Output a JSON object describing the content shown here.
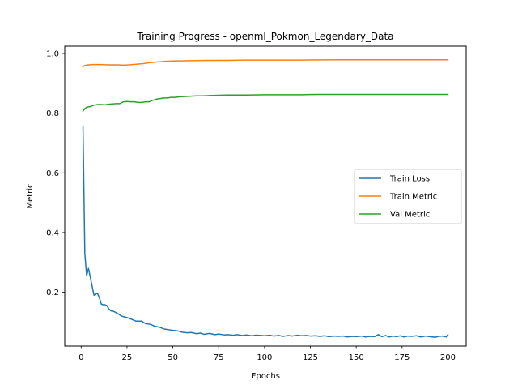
{
  "chart_data": {
    "type": "line",
    "title": "Training Progress - openml_Pokmon_Legendary_Data",
    "xlabel": "Epochs",
    "ylabel": "Metric",
    "xlim": [
      -8.95,
      209.95
    ],
    "ylim": [
      0.0195,
      1.0245
    ],
    "xticks": [
      0,
      25,
      50,
      75,
      100,
      125,
      150,
      175,
      200
    ],
    "yticks": [
      0.2,
      0.4,
      0.6,
      0.8,
      1.0
    ],
    "ytick_labels": [
      "0.2",
      "0.4",
      "0.6",
      "0.8",
      "1.0"
    ],
    "grid": false,
    "legend_position": "center-right",
    "series": [
      {
        "name": "Train Loss",
        "color": "#1f77b4",
        "points": [
          [
            1,
            0.757
          ],
          [
            2,
            0.33
          ],
          [
            3,
            0.255
          ],
          [
            4,
            0.28
          ],
          [
            5,
            0.25
          ],
          [
            6,
            0.22
          ],
          [
            7,
            0.19
          ],
          [
            8,
            0.195
          ],
          [
            9,
            0.195
          ],
          [
            10,
            0.18
          ],
          [
            11,
            0.16
          ],
          [
            12,
            0.158
          ],
          [
            13,
            0.158
          ],
          [
            14,
            0.155
          ],
          [
            15,
            0.145
          ],
          [
            16,
            0.138
          ],
          [
            18,
            0.135
          ],
          [
            20,
            0.128
          ],
          [
            22,
            0.12
          ],
          [
            25,
            0.115
          ],
          [
            28,
            0.108
          ],
          [
            30,
            0.103
          ],
          [
            33,
            0.103
          ],
          [
            35,
            0.095
          ],
          [
            38,
            0.092
          ],
          [
            40,
            0.086
          ],
          [
            43,
            0.082
          ],
          [
            45,
            0.077
          ],
          [
            48,
            0.074
          ],
          [
            50,
            0.072
          ],
          [
            53,
            0.07
          ],
          [
            55,
            0.066
          ],
          [
            58,
            0.064
          ],
          [
            60,
            0.065
          ],
          [
            63,
            0.061
          ],
          [
            65,
            0.063
          ],
          [
            67,
            0.059
          ],
          [
            70,
            0.062
          ],
          [
            73,
            0.058
          ],
          [
            75,
            0.06
          ],
          [
            78,
            0.057
          ],
          [
            80,
            0.058
          ],
          [
            83,
            0.056
          ],
          [
            85,
            0.058
          ],
          [
            88,
            0.055
          ],
          [
            90,
            0.057
          ],
          [
            93,
            0.054
          ],
          [
            95,
            0.056
          ],
          [
            98,
            0.055
          ],
          [
            100,
            0.054
          ],
          [
            103,
            0.056
          ],
          [
            105,
            0.053
          ],
          [
            108,
            0.055
          ],
          [
            110,
            0.052
          ],
          [
            113,
            0.055
          ],
          [
            115,
            0.053
          ],
          [
            118,
            0.056
          ],
          [
            120,
            0.054
          ],
          [
            123,
            0.055
          ],
          [
            125,
            0.053
          ],
          [
            128,
            0.054
          ],
          [
            130,
            0.052
          ],
          [
            133,
            0.054
          ],
          [
            135,
            0.051
          ],
          [
            138,
            0.053
          ],
          [
            140,
            0.052
          ],
          [
            143,
            0.053
          ],
          [
            145,
            0.05
          ],
          [
            148,
            0.052
          ],
          [
            150,
            0.051
          ],
          [
            153,
            0.053
          ],
          [
            155,
            0.05
          ],
          [
            158,
            0.052
          ],
          [
            160,
            0.051
          ],
          [
            162,
            0.058
          ],
          [
            164,
            0.051
          ],
          [
            166,
            0.055
          ],
          [
            168,
            0.05
          ],
          [
            170,
            0.053
          ],
          [
            172,
            0.051
          ],
          [
            174,
            0.054
          ],
          [
            176,
            0.05
          ],
          [
            178,
            0.053
          ],
          [
            180,
            0.052
          ],
          [
            183,
            0.054
          ],
          [
            185,
            0.05
          ],
          [
            188,
            0.053
          ],
          [
            190,
            0.051
          ],
          [
            193,
            0.049
          ],
          [
            195,
            0.052
          ],
          [
            197,
            0.053
          ],
          [
            199,
            0.05
          ],
          [
            200,
            0.058
          ]
        ]
      },
      {
        "name": "Train Metric",
        "color": "#ff7f0e",
        "points": [
          [
            1,
            0.955
          ],
          [
            2,
            0.96
          ],
          [
            4,
            0.962
          ],
          [
            6,
            0.963
          ],
          [
            10,
            0.963
          ],
          [
            15,
            0.962
          ],
          [
            20,
            0.962
          ],
          [
            23,
            0.961
          ],
          [
            26,
            0.962
          ],
          [
            30,
            0.964
          ],
          [
            34,
            0.966
          ],
          [
            38,
            0.97
          ],
          [
            42,
            0.972
          ],
          [
            46,
            0.974
          ],
          [
            50,
            0.975
          ],
          [
            60,
            0.976
          ],
          [
            70,
            0.977
          ],
          [
            80,
            0.977
          ],
          [
            90,
            0.978
          ],
          [
            100,
            0.978
          ],
          [
            120,
            0.978
          ],
          [
            140,
            0.979
          ],
          [
            160,
            0.979
          ],
          [
            180,
            0.979
          ],
          [
            200,
            0.979
          ]
        ]
      },
      {
        "name": "Val Metric",
        "color": "#2ca02c",
        "points": [
          [
            1,
            0.807
          ],
          [
            2,
            0.815
          ],
          [
            3,
            0.82
          ],
          [
            5,
            0.822
          ],
          [
            7,
            0.827
          ],
          [
            9,
            0.829
          ],
          [
            11,
            0.829
          ],
          [
            13,
            0.828
          ],
          [
            15,
            0.83
          ],
          [
            17,
            0.831
          ],
          [
            19,
            0.832
          ],
          [
            21,
            0.832
          ],
          [
            23,
            0.838
          ],
          [
            25,
            0.839
          ],
          [
            27,
            0.838
          ],
          [
            29,
            0.838
          ],
          [
            31,
            0.836
          ],
          [
            33,
            0.836
          ],
          [
            35,
            0.838
          ],
          [
            37,
            0.838
          ],
          [
            39,
            0.843
          ],
          [
            41,
            0.847
          ],
          [
            43,
            0.849
          ],
          [
            45,
            0.851
          ],
          [
            47,
            0.851
          ],
          [
            49,
            0.853
          ],
          [
            51,
            0.853
          ],
          [
            54,
            0.855
          ],
          [
            57,
            0.856
          ],
          [
            60,
            0.857
          ],
          [
            63,
            0.858
          ],
          [
            66,
            0.858
          ],
          [
            70,
            0.859
          ],
          [
            75,
            0.86
          ],
          [
            80,
            0.861
          ],
          [
            90,
            0.861
          ],
          [
            100,
            0.862
          ],
          [
            110,
            0.862
          ],
          [
            120,
            0.862
          ],
          [
            130,
            0.863
          ],
          [
            140,
            0.863
          ],
          [
            150,
            0.863
          ],
          [
            160,
            0.863
          ],
          [
            170,
            0.863
          ],
          [
            180,
            0.863
          ],
          [
            190,
            0.863
          ],
          [
            200,
            0.863
          ]
        ]
      }
    ]
  }
}
